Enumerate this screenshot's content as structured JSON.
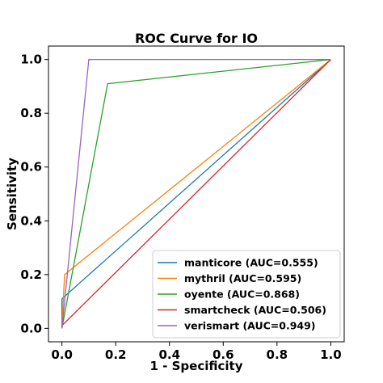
{
  "chart_data": {
    "type": "line",
    "title": "ROC Curve for IO",
    "xlabel": "1 - Specificity",
    "ylabel": "Sensitivity",
    "xlim": [
      -0.05,
      1.05
    ],
    "ylim": [
      -0.05,
      1.05
    ],
    "x_ticks": [
      "0.0",
      "0.2",
      "0.4",
      "0.6",
      "0.8",
      "1.0"
    ],
    "y_ticks": [
      "0.0",
      "0.2",
      "0.4",
      "0.6",
      "0.8",
      "1.0"
    ],
    "grid": false,
    "legend_position": "lower-right",
    "series": [
      {
        "name": "manticore (AUC=0.555)",
        "color": "#1f77b4",
        "x": [
          0.0,
          0.0,
          1.0
        ],
        "y": [
          0.0,
          0.11,
          1.0
        ]
      },
      {
        "name": "mythril (AUC=0.595)",
        "color": "#ff7f0e",
        "x": [
          0.0,
          0.01,
          1.0
        ],
        "y": [
          0.0,
          0.2,
          1.0
        ]
      },
      {
        "name": "oyente (AUC=0.868)",
        "color": "#2ca02c",
        "x": [
          0.0,
          0.17,
          1.0
        ],
        "y": [
          0.0,
          0.91,
          1.0
        ]
      },
      {
        "name": "smartcheck (AUC=0.506)",
        "color": "#d62728",
        "x": [
          0.0,
          0.0,
          1.0
        ],
        "y": [
          0.0,
          0.01,
          1.0
        ]
      },
      {
        "name": "verismart (AUC=0.949)",
        "color": "#9467bd",
        "x": [
          0.0,
          0.1,
          1.0
        ],
        "y": [
          0.0,
          1.0,
          1.0
        ]
      }
    ]
  }
}
